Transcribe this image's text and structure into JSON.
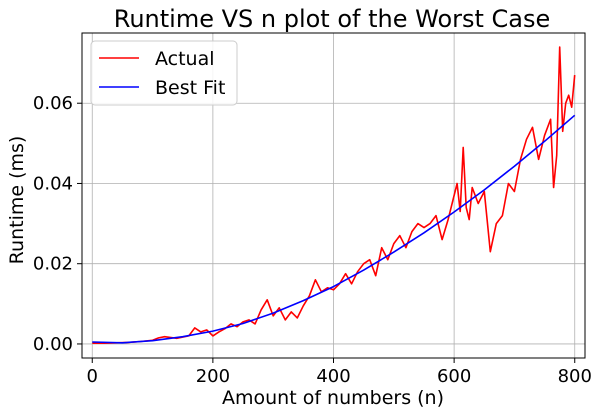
{
  "chart_data": {
    "type": "line",
    "title": "Runtime VS n plot of the Worst Case",
    "xlabel": "Amount of numbers (n)",
    "ylabel": "Runtime (ms)",
    "xlim": [
      -17,
      817
    ],
    "ylim": [
      -0.0035,
      0.0775
    ],
    "grid": true,
    "legend_position": "upper-left",
    "x_ticks": [
      0,
      200,
      400,
      600,
      800
    ],
    "x_tick_labels": [
      "0",
      "200",
      "400",
      "600",
      "800"
    ],
    "y_ticks": [
      0.0,
      0.02,
      0.04,
      0.06
    ],
    "y_tick_labels": [
      "0.00",
      "0.02",
      "0.04",
      "0.06"
    ],
    "series": [
      {
        "name": "Actual",
        "color": "#ff0000",
        "x": [
          0,
          20,
          40,
          60,
          80,
          100,
          110,
          120,
          140,
          160,
          170,
          180,
          190,
          200,
          210,
          220,
          230,
          240,
          250,
          260,
          270,
          280,
          290,
          300,
          310,
          320,
          330,
          340,
          350,
          360,
          370,
          380,
          390,
          400,
          410,
          420,
          430,
          440,
          450,
          460,
          470,
          480,
          490,
          500,
          510,
          520,
          530,
          540,
          550,
          560,
          570,
          580,
          590,
          600,
          605,
          610,
          615,
          620,
          625,
          630,
          640,
          650,
          660,
          670,
          680,
          690,
          700,
          710,
          720,
          730,
          740,
          750,
          760,
          765,
          770,
          775,
          780,
          785,
          790,
          795,
          800
        ],
        "y": [
          0.0002,
          0.0002,
          0.0003,
          0.0004,
          0.0006,
          0.0009,
          0.0015,
          0.0018,
          0.0014,
          0.002,
          0.004,
          0.003,
          0.0035,
          0.002,
          0.003,
          0.0038,
          0.005,
          0.0043,
          0.0055,
          0.006,
          0.005,
          0.0085,
          0.011,
          0.007,
          0.009,
          0.006,
          0.008,
          0.0065,
          0.0095,
          0.012,
          0.016,
          0.013,
          0.014,
          0.0135,
          0.015,
          0.0175,
          0.015,
          0.018,
          0.02,
          0.021,
          0.017,
          0.024,
          0.021,
          0.025,
          0.027,
          0.024,
          0.028,
          0.03,
          0.029,
          0.03,
          0.032,
          0.026,
          0.031,
          0.037,
          0.04,
          0.033,
          0.049,
          0.034,
          0.031,
          0.039,
          0.035,
          0.038,
          0.023,
          0.03,
          0.032,
          0.04,
          0.038,
          0.046,
          0.051,
          0.054,
          0.046,
          0.052,
          0.056,
          0.039,
          0.047,
          0.074,
          0.053,
          0.06,
          0.062,
          0.059,
          0.067
        ]
      },
      {
        "name": "Best Fit",
        "color": "#0000ff",
        "x": [
          0,
          50,
          100,
          150,
          200,
          250,
          300,
          350,
          400,
          450,
          500,
          550,
          600,
          650,
          700,
          750,
          800
        ],
        "y": [
          0.0005,
          0.0003,
          0.0008,
          0.0018,
          0.0032,
          0.0051,
          0.0077,
          0.0108,
          0.0143,
          0.0184,
          0.0229,
          0.0277,
          0.0329,
          0.0384,
          0.0443,
          0.0505,
          0.057
        ]
      }
    ]
  }
}
